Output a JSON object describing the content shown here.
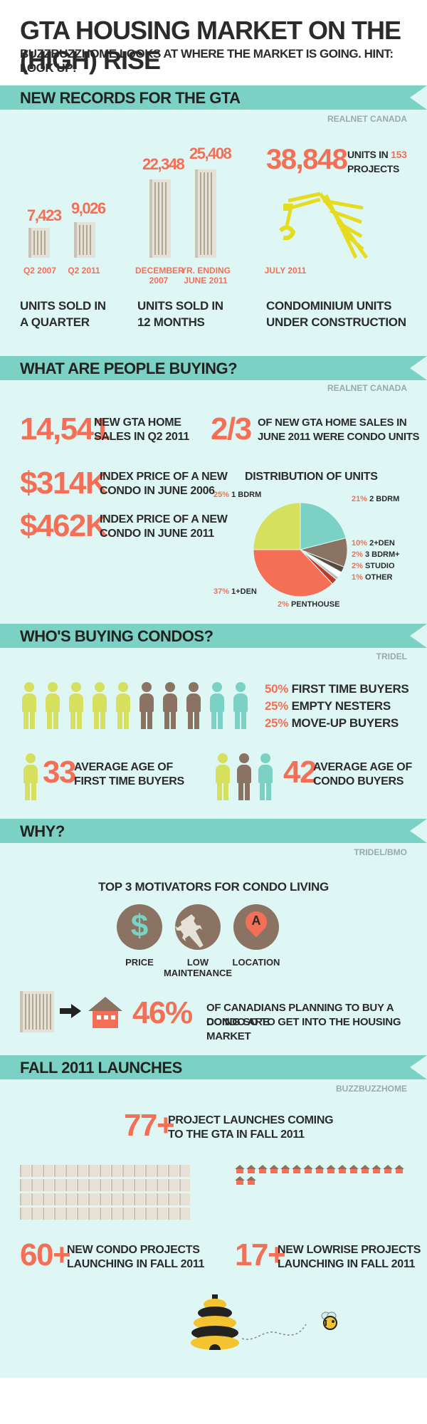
{
  "header": {
    "title": "GTA HOUSING MARKET ON THE (HIGH) RISE",
    "subtitle": "BUZZBUZZHOME LOOKS AT WHERE THE MARKET IS GOING. HINT: LOOK UP!"
  },
  "records": {
    "banner": "NEW RECORDS FOR THE GTA",
    "source": "REALNET CANADA",
    "q_units": [
      {
        "value": "7,423",
        "label": "Q2 2007"
      },
      {
        "value": "9,026",
        "label": "Q2 2011"
      }
    ],
    "m_units": [
      {
        "value": "22,348",
        "label_1": "DECEMBER",
        "label_2": "2007"
      },
      {
        "value": "25,408",
        "label_1": "YR. ENDING",
        "label_2": "JUNE 2011"
      }
    ],
    "condo_big": "38,848",
    "condo_units_text": "UNITS IN",
    "condo_projects_num": "153",
    "condo_projects_text": "PROJECTS",
    "crane_label": "JULY 2011",
    "cap_1_l1": "UNITS SOLD IN",
    "cap_1_l2": "A QUARTER",
    "cap_2_l1": "UNITS SOLD IN",
    "cap_2_l2": "12 MONTHS",
    "cap_3_l1": "CONDOMINIUM UNITS",
    "cap_3_l2": "UNDER CONSTRUCTION"
  },
  "buying": {
    "banner": "WHAT ARE PEOPLE BUYING?",
    "source": "REALNET CANADA",
    "sales_big": "14,541",
    "sales_l1": "NEW GTA HOME",
    "sales_l2": "SALES IN Q2 2011",
    "frac_big": "2/3",
    "frac_l1": "OF NEW GTA HOME SALES IN",
    "frac_l2": "JUNE 2011 WERE CONDO UNITS",
    "p1_big": "$314K",
    "p1_l1": "INDEX PRICE OF A NEW",
    "p1_l2": "CONDO IN JUNE 2006",
    "p2_big": "$462K",
    "p2_l1": "INDEX PRICE OF A NEW",
    "p2_l2": "CONDO IN JUNE 2011",
    "dist_title": "DISTRIBUTION OF UNITS"
  },
  "chart_data": {
    "type": "pie",
    "title": "DISTRIBUTION OF UNITS",
    "slices": [
      {
        "label": "2 BDRM",
        "pct_text": "21%",
        "value": 21,
        "color": "#7cd1c5"
      },
      {
        "label": "2+DEN",
        "pct_text": "10%",
        "value": 10,
        "color": "#8a7363"
      },
      {
        "label": "3 BDRM+",
        "pct_text": "2%",
        "value": 2,
        "color": "#5a4a3e"
      },
      {
        "label": "STUDIO",
        "pct_text": "2%",
        "value": 2,
        "color": "#ffffff"
      },
      {
        "label": "OTHER",
        "pct_text": "1%",
        "value": 1,
        "color": "#b8b8b8"
      },
      {
        "label": "PENTHOUSE",
        "pct_text": "2%",
        "value": 2,
        "color": "#c0392b"
      },
      {
        "label": "1+DEN",
        "pct_text": "37%",
        "value": 37,
        "color": "#f46f55"
      },
      {
        "label": "1 BDRM",
        "pct_text": "25%",
        "value": 25,
        "color": "#d6e05e"
      }
    ]
  },
  "who": {
    "banner": "WHO'S BUYING CONDOS?",
    "source": "TRIDEL",
    "pct_1": "50%",
    "txt_1": "FIRST TIME BUYERS",
    "pct_2": "25%",
    "txt_2": "EMPTY NESTERS",
    "pct_3": "25%",
    "txt_3": "MOVE-UP BUYERS",
    "age_1_big": "33",
    "age_1_l1": "AVERAGE AGE OF",
    "age_1_l2": "FIRST TIME BUYERS",
    "age_2_big": "42",
    "age_2_l1": "AVERAGE AGE OF",
    "age_2_l2": "CONDO BUYERS",
    "colors": {
      "first": "#d6e05e",
      "empty": "#8a7363",
      "moveup": "#7cd1c5"
    }
  },
  "why": {
    "banner": "WHY?",
    "source": "TRIDEL/BMO",
    "title": "TOP 3 MOTIVATORS FOR CONDO LIVING",
    "m1": "PRICE",
    "m2": "LOW MAINTENANCE",
    "m3": "LOCATION",
    "m3_glyph": "A",
    "m1_glyph": "$",
    "big": "46%",
    "l1": "OF CANADIANS PLANNING TO BUY A CONDO ARE",
    "l2": "DOING SO TO GET INTO THE HOUSING MARKET"
  },
  "launches": {
    "banner": "FALL 2011 LAUNCHES",
    "source": "BUZZBUZZHOME",
    "total_big": "77+",
    "total_l1": "PROJECT LAUNCHES COMING",
    "total_l2": "TO THE GTA IN FALL 2011",
    "condo_big": "60+",
    "condo_l1": "NEW CONDO PROJECTS",
    "condo_l2": "LAUNCHING IN FALL 2011",
    "low_big": "17+",
    "low_l1": "NEW LOWRISE PROJECTS",
    "low_l2": "LAUNCHING IN FALL 2011",
    "condo_count": 60,
    "lowrise_count": 17
  }
}
